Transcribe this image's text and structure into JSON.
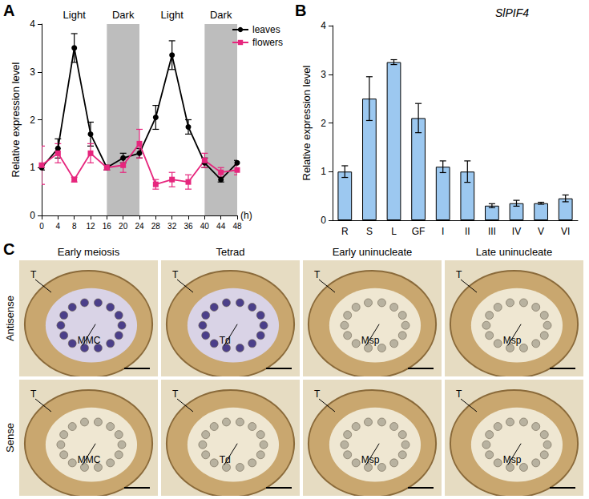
{
  "panel_labels": [
    "A",
    "B",
    "C"
  ],
  "chart_data": [
    {
      "type": "line",
      "x": [
        0,
        4,
        8,
        12,
        16,
        20,
        24,
        28,
        32,
        36,
        40,
        44,
        48
      ],
      "xlim": [
        0,
        48
      ],
      "xticks": [
        0,
        4,
        8,
        12,
        16,
        20,
        24,
        28,
        32,
        36,
        40,
        44,
        48
      ],
      "ylim": [
        0,
        4
      ],
      "yticks": [
        0,
        1,
        2,
        3,
        4
      ],
      "xlabel": "(h)",
      "ylabel": "Relative expression level",
      "legend": "top-right",
      "series": [
        {
          "name": "leaves",
          "color": "#000000",
          "marker": "circle",
          "values": [
            1.0,
            1.4,
            3.5,
            1.7,
            1.0,
            1.2,
            1.3,
            2.05,
            3.35,
            1.85,
            1.1,
            0.75,
            1.1
          ],
          "errors": [
            0.05,
            0.2,
            0.3,
            0.25,
            0.05,
            0.1,
            0.1,
            0.25,
            0.3,
            0.15,
            0.1,
            0.05,
            0.05
          ]
        },
        {
          "name": "flowers",
          "color": "#e6267d",
          "marker": "square",
          "values": [
            1.05,
            1.3,
            0.75,
            1.3,
            1.0,
            1.05,
            1.5,
            0.65,
            0.75,
            0.7,
            1.15,
            0.9,
            0.95
          ],
          "errors": [
            0.4,
            0.2,
            0.05,
            0.2,
            0.05,
            0.15,
            0.3,
            0.1,
            0.15,
            0.15,
            0.15,
            0.1,
            0.1
          ]
        }
      ],
      "periods": [
        {
          "label": "Light",
          "start": 0,
          "end": 16
        },
        {
          "label": "Dark",
          "start": 16,
          "end": 24,
          "color": "#bdbdbd"
        },
        {
          "label": "Light",
          "start": 24,
          "end": 40
        },
        {
          "label": "Dark",
          "start": 40,
          "end": 48,
          "color": "#bdbdbd"
        }
      ]
    },
    {
      "type": "bar",
      "title": "SlPIF4",
      "categories": [
        "R",
        "S",
        "L",
        "GF",
        "I",
        "II",
        "III",
        "IV",
        "V",
        "VI"
      ],
      "values": [
        1.0,
        2.5,
        3.25,
        2.1,
        1.1,
        1.0,
        0.3,
        0.35,
        0.35,
        0.45
      ],
      "errors": [
        0.12,
        0.45,
        0.05,
        0.3,
        0.12,
        0.22,
        0.04,
        0.06,
        0.02,
        0.07
      ],
      "color": "#9cc8f0",
      "ylim": [
        0,
        4
      ],
      "yticks": [
        0,
        1,
        2,
        3,
        4
      ],
      "ylabel": "Relative expression level"
    }
  ],
  "panel_c": {
    "columns": [
      "Early meiosis",
      "Tetrad",
      "Early uninucleate",
      "Late uninucleate"
    ],
    "rows": [
      {
        "label": "Antisense",
        "cells": [
          [
            "T",
            "MMC"
          ],
          [
            "T",
            "Td"
          ],
          [
            "T",
            "Msp"
          ],
          [
            "T",
            "Msp"
          ]
        ]
      },
      {
        "label": "Sense",
        "cells": [
          [
            "T",
            "MMC"
          ],
          [
            "T",
            "Td"
          ],
          [
            "T",
            "Msp"
          ],
          [
            "T",
            "Msp"
          ]
        ]
      }
    ]
  }
}
